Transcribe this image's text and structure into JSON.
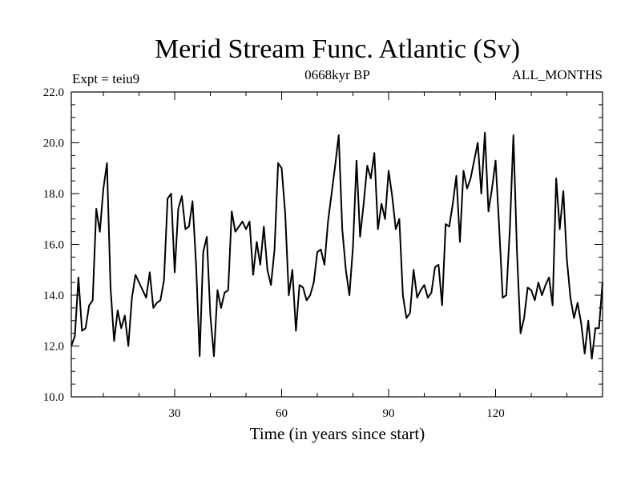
{
  "chart_data": {
    "type": "line",
    "title": "Merid Stream Func. Atlantic (Sv)",
    "subtitle": "0668kyr BP",
    "left_label": "Expt = teiu9",
    "right_label": "ALL_MONTHS",
    "xlabel": "Time (in years since start)",
    "ylabel": "",
    "xlim": [
      1,
      150
    ],
    "ylim": [
      10.0,
      22.0
    ],
    "x_ticks": [
      30,
      60,
      90,
      120
    ],
    "y_ticks": [
      "10.0",
      "12.0",
      "14.0",
      "16.0",
      "18.0",
      "20.0",
      "22.0"
    ],
    "grid": false,
    "line_color": "#000000",
    "series": [
      {
        "values": [
          12.0,
          12.4,
          14.7,
          12.6,
          12.7,
          13.6,
          13.8,
          17.4,
          16.5,
          18.2,
          19.2,
          14.3,
          12.2,
          13.4,
          12.7,
          13.2,
          12.0,
          13.9,
          14.8,
          14.5,
          14.2,
          13.9,
          14.9,
          13.5,
          13.7,
          13.8,
          14.6,
          17.8,
          18.0,
          14.9,
          17.4,
          17.9,
          16.6,
          16.7,
          17.7,
          15.2,
          11.6,
          15.7,
          16.3,
          13.2,
          11.6,
          14.2,
          13.5,
          14.1,
          14.2,
          17.3,
          16.5,
          16.7,
          16.9,
          16.6,
          16.9,
          14.8,
          16.1,
          15.2,
          16.7,
          15.0,
          14.4,
          15.8,
          19.2,
          19.0,
          17.2,
          14.0,
          15.0,
          12.6,
          14.4,
          14.3,
          13.8,
          14.0,
          14.5,
          15.7,
          15.8,
          15.2,
          16.9,
          18.0,
          19.1,
          20.3,
          16.6,
          15.0,
          14.0,
          15.9,
          19.3,
          16.3,
          17.6,
          19.1,
          18.6,
          19.6,
          16.6,
          17.6,
          17.0,
          18.9,
          17.9,
          16.6,
          17.0,
          14.0,
          13.1,
          13.3,
          15.0,
          13.9,
          14.2,
          14.4,
          13.9,
          14.1,
          15.1,
          15.2,
          13.6,
          16.8,
          16.7,
          17.6,
          18.7,
          16.1,
          18.9,
          18.2,
          18.6,
          19.3,
          20.0,
          18.0,
          20.4,
          17.3,
          18.2,
          19.3,
          16.7,
          13.9,
          14.0,
          16.6,
          20.3,
          15.7,
          12.5,
          13.1,
          14.3,
          14.2,
          13.8,
          14.5,
          14.0,
          14.4,
          14.7,
          13.6,
          18.6,
          16.6,
          18.1,
          15.4,
          13.9,
          13.1,
          13.7,
          12.9,
          11.7,
          13.0,
          11.5,
          12.7,
          12.7,
          14.5
        ]
      }
    ]
  }
}
